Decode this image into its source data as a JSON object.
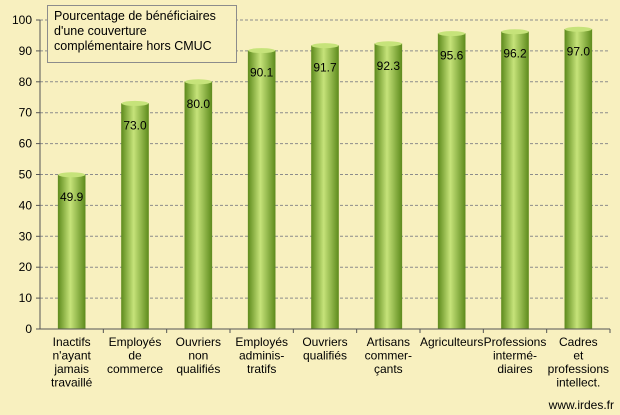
{
  "chart_data": {
    "type": "bar",
    "title": "Pourcentage de bénéficiaires d'une couverture complémentaire hors CMUC",
    "categories": [
      [
        "Inactifs",
        "n'ayant",
        "jamais",
        "travaillé"
      ],
      [
        "Employés",
        "de",
        "commerce"
      ],
      [
        "Ouvriers",
        "non",
        "qualifiés"
      ],
      [
        "Employés",
        "adminis-",
        "tratifs"
      ],
      [
        "Ouvriers",
        "qualifiés"
      ],
      [
        "Artisans",
        "commer-",
        "çants"
      ],
      [
        "Agriculteurs"
      ],
      [
        "Professions",
        "intermé-",
        "diaires"
      ],
      [
        "Cadres",
        "et",
        "professions",
        "intellect."
      ]
    ],
    "values": [
      49.9,
      73.0,
      80.0,
      90.1,
      91.7,
      92.3,
      95.6,
      96.2,
      97.0
    ],
    "data_labels": [
      "49.9",
      "73.0",
      "80.0",
      "90.1",
      "91.7",
      "92.3",
      "95.6",
      "96.2",
      "97.0"
    ],
    "ylim": [
      0,
      100
    ],
    "yticks": [
      0,
      10,
      20,
      30,
      40,
      50,
      60,
      70,
      80,
      90,
      100
    ],
    "grid": true,
    "colors": {
      "bar": "#8fbf3a",
      "bar_light": "#c6e37a",
      "bar_dark": "#5f8c1e",
      "grid": "#8c8c8c",
      "background": "#f8f0bf"
    }
  },
  "source": "www.irdes.fr"
}
